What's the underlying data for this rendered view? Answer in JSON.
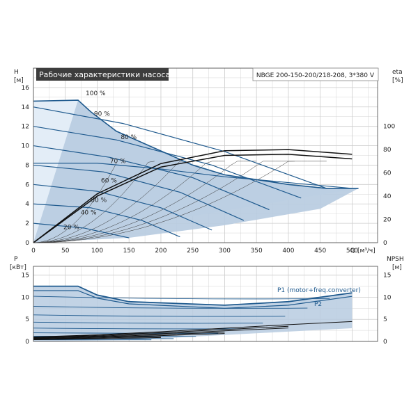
{
  "colors": {
    "curve": "#1f5a8e",
    "fill": "#b7cbe0",
    "fill_light": "#e3edf7",
    "black_curve": "#111111",
    "grid": "#cccccc"
  },
  "chart_data": [
    {
      "type": "line",
      "title": "Рабочие характеристики насоса",
      "subtitle": "NBGE 200-150-200/218-208, 3*380 V",
      "ylabel": "H",
      "yunit": "[м]",
      "xlabel": "Q [м³/ч]",
      "ylabel_right": "eta",
      "yunit_right": "[%]",
      "xlim": [
        0,
        540
      ],
      "ylim": [
        0,
        18
      ],
      "ylim_right": [
        0,
        150
      ],
      "x_ticks": [
        "0",
        "50",
        "100",
        "150",
        "200",
        "250",
        "300",
        "350",
        "400",
        "450",
        "500"
      ],
      "y_ticks": [
        "0",
        "2",
        "4",
        "6",
        "8",
        "10",
        "12",
        "14",
        "16"
      ],
      "y_ticks_right": [
        "0",
        "20",
        "40",
        "60",
        "80",
        "100"
      ],
      "grid": true,
      "speed_labels": [
        {
          "text": "100 %",
          "x": 82,
          "y": 15.2
        },
        {
          "text": "90 %",
          "x": 95,
          "y": 13.1
        },
        {
          "text": "80 %",
          "x": 137,
          "y": 10.7
        },
        {
          "text": "70 %",
          "x": 120,
          "y": 8.2
        },
        {
          "text": "60 %",
          "x": 106,
          "y": 6.2
        },
        {
          "text": "50 %",
          "x": 90,
          "y": 4.2
        },
        {
          "text": "40 %",
          "x": 74,
          "y": 2.9
        },
        {
          "text": "20 %",
          "x": 47,
          "y": 1.4
        }
      ],
      "envelope": {
        "x": [
          0,
          70,
          90,
          130,
          250,
          300,
          400,
          460,
          510,
          0
        ],
        "y": [
          14.6,
          14.7,
          13.5,
          11.5,
          8.0,
          7.0,
          6.0,
          5.6,
          5.6,
          0
        ]
      },
      "speed_curves": [
        {
          "x": [
            0,
            80,
            150
          ],
          "y": [
            2.0,
            1.5,
            0.5
          ]
        },
        {
          "x": [
            0,
            90,
            170,
            230
          ],
          "y": [
            4.0,
            3.6,
            2.3,
            0.6
          ]
        },
        {
          "x": [
            0,
            100,
            200,
            280
          ],
          "y": [
            6.0,
            5.3,
            3.6,
            1.3
          ]
        },
        {
          "x": [
            0,
            110,
            230,
            330
          ],
          "y": [
            8.0,
            7.3,
            5.2,
            2.3
          ]
        },
        {
          "x": [
            0,
            120,
            250,
            370
          ],
          "y": [
            10.0,
            8.8,
            6.7,
            3.4
          ]
        },
        {
          "x": [
            0,
            130,
            280,
            420
          ],
          "y": [
            12.0,
            10.6,
            8.0,
            4.6
          ]
        },
        {
          "x": [
            0,
            140,
            300,
            460
          ],
          "y": [
            14.0,
            12.3,
            9.4,
            5.6
          ]
        },
        {
          "x": [
            0,
            100,
            200,
            300,
            400,
            500
          ],
          "y": [
            8.2,
            8.2,
            7.6,
            6.8,
            6.2,
            5.6
          ]
        }
      ],
      "eta_curves": [
        {
          "x": [
            0,
            100,
            200,
            300,
            400,
            500
          ],
          "y": [
            0,
            42,
            68,
            79,
            80,
            76
          ]
        },
        {
          "x": [
            0,
            100,
            200,
            300,
            400,
            500
          ],
          "y": [
            0,
            40,
            65,
            75,
            76,
            72
          ]
        }
      ]
    },
    {
      "type": "line",
      "ylabel": "P",
      "yunit": "[кВт]",
      "ylabel_right": "NPSH",
      "yunit_right": "[м]",
      "xlim": [
        0,
        540
      ],
      "ylim": [
        0,
        17
      ],
      "ylim_right": [
        0,
        17
      ],
      "y_ticks": [
        "0",
        "5",
        "10",
        "15"
      ],
      "y_ticks_right": [
        "0",
        "5",
        "10",
        "15"
      ],
      "grid": true,
      "series": [
        {
          "name": "P1 (motor+freq.converter)",
          "x": [
            0,
            70,
            100,
            150,
            300,
            400,
            500
          ],
          "y": [
            12.5,
            12.5,
            10.5,
            9.0,
            8.2,
            9.0,
            11.0
          ]
        },
        {
          "name": "P2",
          "x": [
            0,
            70,
            100,
            150,
            300,
            400,
            500
          ],
          "y": [
            11.5,
            11.5,
            9.8,
            8.5,
            7.5,
            8.2,
            10.2
          ]
        }
      ],
      "npsh": {
        "x": [
          0,
          100,
          200,
          300,
          400,
          500
        ],
        "y": [
          1.0,
          1.5,
          2.2,
          3.0,
          3.8,
          4.5
        ]
      }
    }
  ]
}
